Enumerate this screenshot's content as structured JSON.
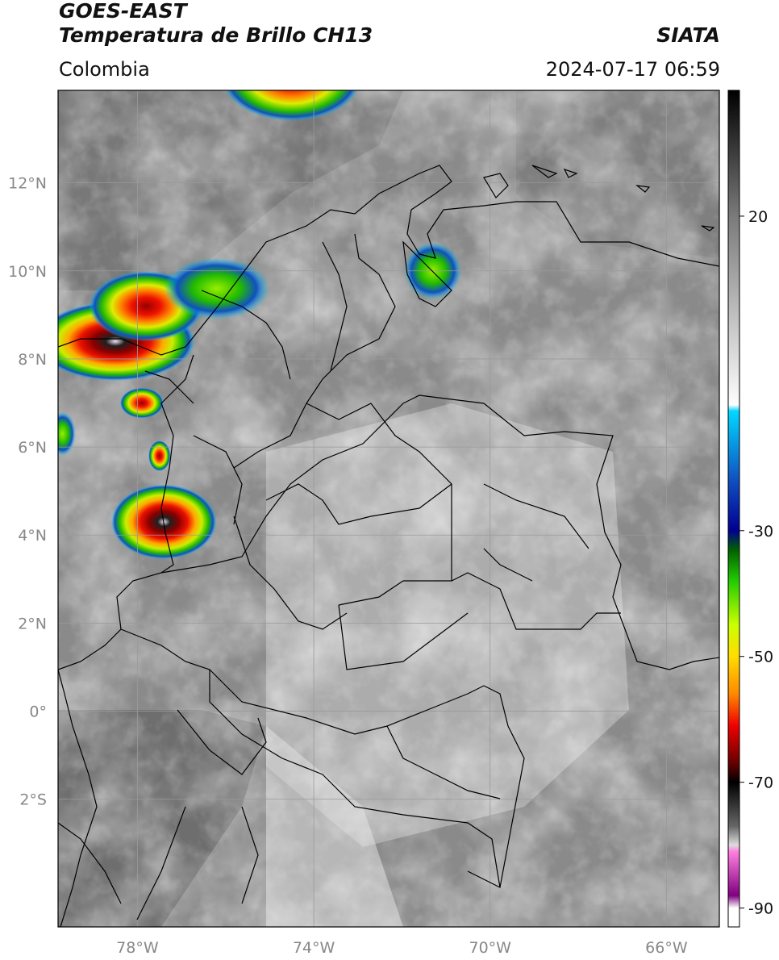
{
  "header": {
    "satellite": "GOES-EAST",
    "product": "Temperatura de Brillo CH13",
    "region": "Colombia",
    "agency": "SIATA",
    "timestamp": "2024-07-17 06:59"
  },
  "map": {
    "lon_range": [
      -79.8,
      -64.8
    ],
    "lat_range": [
      -4.9,
      14.1
    ],
    "lon_ticks": [
      {
        "value": -78,
        "label": "78°W"
      },
      {
        "value": -74,
        "label": "74°W"
      },
      {
        "value": -70,
        "label": "70°W"
      },
      {
        "value": -66,
        "label": "66°W"
      }
    ],
    "lat_ticks": [
      {
        "value": 12,
        "label": "12°N"
      },
      {
        "value": 10,
        "label": "10°N"
      },
      {
        "value": 8,
        "label": "8°N"
      },
      {
        "value": 6,
        "label": "6°N"
      },
      {
        "value": 4,
        "label": "4°N"
      },
      {
        "value": 2,
        "label": "2°N"
      },
      {
        "value": 0,
        "label": "0°"
      },
      {
        "value": -2,
        "label": "2°S"
      }
    ],
    "gridlines": true,
    "storm_cells": [
      {
        "lon": -74.5,
        "lat": 14.4,
        "rx": 1.6,
        "ry": 1.0,
        "core": "red"
      },
      {
        "lon": -78.5,
        "lat": 8.4,
        "rx": 1.8,
        "ry": 0.9,
        "core": "black"
      },
      {
        "lon": -77.8,
        "lat": 9.2,
        "rx": 1.3,
        "ry": 0.8,
        "core": "red"
      },
      {
        "lon": -76.2,
        "lat": 9.6,
        "rx": 1.2,
        "ry": 0.7,
        "core": "green"
      },
      {
        "lon": -77.9,
        "lat": 7.0,
        "rx": 0.5,
        "ry": 0.35,
        "core": "red"
      },
      {
        "lon": -77.5,
        "lat": 5.8,
        "rx": 0.25,
        "ry": 0.35,
        "core": "red"
      },
      {
        "lon": -77.4,
        "lat": 4.3,
        "rx": 1.2,
        "ry": 0.85,
        "core": "black"
      },
      {
        "lon": -71.3,
        "lat": 10.0,
        "rx": 0.65,
        "ry": 0.65,
        "core": "green"
      },
      {
        "lon": -79.7,
        "lat": 6.3,
        "rx": 0.3,
        "ry": 0.5,
        "core": "green"
      }
    ]
  },
  "colorbar": {
    "unit_ticks": [
      {
        "value": 20,
        "label": "20"
      },
      {
        "value": -30,
        "label": "-30"
      },
      {
        "value": -50,
        "label": "-50"
      },
      {
        "value": -70,
        "label": "-70"
      },
      {
        "value": -90,
        "label": "-90"
      }
    ],
    "range": [
      -93,
      40
    ],
    "stops": [
      {
        "t": 40,
        "color": "#000000"
      },
      {
        "t": 20,
        "color": "#7a7a7a"
      },
      {
        "t": -10,
        "color": "#fdfdfd"
      },
      {
        "t": -11,
        "color": "#00d8ff"
      },
      {
        "t": -22,
        "color": "#1050c0"
      },
      {
        "t": -30,
        "color": "#000090"
      },
      {
        "t": -33,
        "color": "#006000"
      },
      {
        "t": -38,
        "color": "#22cc00"
      },
      {
        "t": -45,
        "color": "#ccff00"
      },
      {
        "t": -50,
        "color": "#ffdd00"
      },
      {
        "t": -56,
        "color": "#ff8800"
      },
      {
        "t": -61,
        "color": "#ee0000"
      },
      {
        "t": -67,
        "color": "#660000"
      },
      {
        "t": -70,
        "color": "#000000"
      },
      {
        "t": -77,
        "color": "#666666"
      },
      {
        "t": -80,
        "color": "#dddddd"
      },
      {
        "t": -81,
        "color": "#ff80e0"
      },
      {
        "t": -88,
        "color": "#800080"
      },
      {
        "t": -90,
        "color": "#ffffff"
      },
      {
        "t": -93,
        "color": "#ffffff"
      }
    ]
  }
}
